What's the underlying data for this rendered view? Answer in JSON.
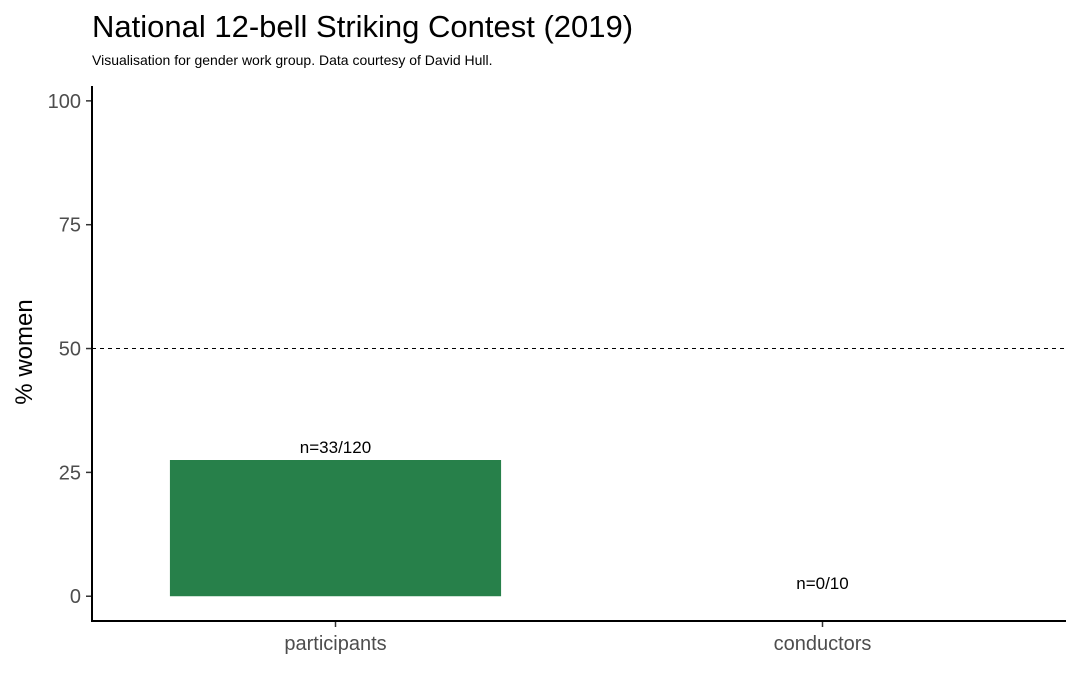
{
  "chart_data": {
    "type": "bar",
    "title": "National 12-bell Striking Contest (2019)",
    "subtitle": "Visualisation for gender work group. Data courtesy of David Hull.",
    "xlabel": "",
    "ylabel": "% women",
    "categories": [
      "participants",
      "conductors"
    ],
    "values": [
      27.5,
      0
    ],
    "bar_labels": [
      "n=33/120",
      "n=0/10"
    ],
    "ylim": [
      -5,
      103
    ],
    "yticks": [
      0,
      25,
      50,
      75,
      100
    ],
    "reference_line": 50,
    "grid": false,
    "legend": "none",
    "bar_color": "#27804a"
  }
}
